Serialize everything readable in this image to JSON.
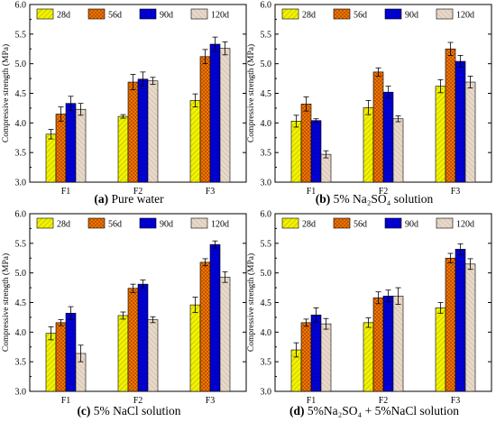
{
  "legend_labels": [
    "28d",
    "56d",
    "90d",
    "120d"
  ],
  "series_colors": [
    "#f2f200",
    "#ff8000",
    "#0000d8",
    "#e8d8c8"
  ],
  "chart_data": [
    {
      "type": "bar",
      "caption_tag": "(a)",
      "caption_text": " Pure water",
      "ylabel": "Compressive strength (MPa)",
      "categories": [
        "F1",
        "F2",
        "F3"
      ],
      "ylim": [
        3.0,
        6.0
      ],
      "yticks": [
        "3.0",
        "3.5",
        "4.0",
        "4.5",
        "5.0",
        "5.5",
        "6.0"
      ],
      "legend_position": "top",
      "series": [
        {
          "name": "28d",
          "values": [
            3.81,
            4.11,
            4.38
          ],
          "errors": [
            0.08,
            0.03,
            0.11
          ]
        },
        {
          "name": "56d",
          "values": [
            4.15,
            4.69,
            5.12
          ],
          "errors": [
            0.12,
            0.13,
            0.12
          ]
        },
        {
          "name": "90d",
          "values": [
            4.33,
            4.74,
            5.33
          ],
          "errors": [
            0.12,
            0.12,
            0.12
          ]
        },
        {
          "name": "120d",
          "values": [
            4.23,
            4.71,
            5.26
          ],
          "errors": [
            0.1,
            0.06,
            0.11
          ]
        }
      ]
    },
    {
      "type": "bar",
      "caption_tag": "(b)",
      "caption_text": " 5% Na₂SO₄ solution",
      "ylabel": "Compressive strength (MPa)",
      "categories": [
        "F1",
        "F2",
        "F3"
      ],
      "ylim": [
        3.0,
        6.0
      ],
      "yticks": [
        "3.0",
        "3.5",
        "4.0",
        "4.5",
        "5.0",
        "5.5",
        "6.0"
      ],
      "legend_position": "top",
      "series": [
        {
          "name": "28d",
          "values": [
            4.03,
            4.26,
            4.62
          ],
          "errors": [
            0.1,
            0.12,
            0.11
          ]
        },
        {
          "name": "56d",
          "values": [
            4.32,
            4.86,
            5.25
          ],
          "errors": [
            0.12,
            0.07,
            0.11
          ]
        },
        {
          "name": "90d",
          "values": [
            4.04,
            4.52,
            5.04
          ],
          "errors": [
            0.03,
            0.1,
            0.1
          ]
        },
        {
          "name": "120d",
          "values": [
            3.47,
            4.07,
            4.69
          ],
          "errors": [
            0.06,
            0.05,
            0.1
          ]
        }
      ]
    },
    {
      "type": "bar",
      "caption_tag": "(c)",
      "caption_text": " 5% NaCl solution",
      "ylabel": "Compressive strength (MPa)",
      "categories": [
        "F1",
        "F2",
        "F3"
      ],
      "ylim": [
        3.0,
        6.0
      ],
      "yticks": [
        "3.0",
        "3.5",
        "4.0",
        "4.5",
        "5.0",
        "5.5",
        "6.0"
      ],
      "legend_position": "top",
      "series": [
        {
          "name": "28d",
          "values": [
            3.98,
            4.28,
            4.46
          ],
          "errors": [
            0.11,
            0.06,
            0.13
          ]
        },
        {
          "name": "56d",
          "values": [
            4.16,
            4.74,
            5.18
          ],
          "errors": [
            0.05,
            0.07,
            0.06
          ]
        },
        {
          "name": "90d",
          "values": [
            4.32,
            4.81,
            5.48
          ],
          "errors": [
            0.11,
            0.07,
            0.06
          ]
        },
        {
          "name": "120d",
          "values": [
            3.64,
            4.21,
            4.93
          ],
          "errors": [
            0.14,
            0.05,
            0.09
          ]
        }
      ]
    },
    {
      "type": "bar",
      "caption_tag": "(d)",
      "caption_text": " 5%Na₂SO₄ + 5%NaCl solution",
      "ylabel": "Compressive strength (MPa)",
      "categories": [
        "F1",
        "F2",
        "F3"
      ],
      "ylim": [
        3.0,
        6.0
      ],
      "yticks": [
        "3.0",
        "3.5",
        "4.0",
        "4.5",
        "5.0",
        "5.5",
        "6.0"
      ],
      "legend_position": "top",
      "series": [
        {
          "name": "28d",
          "values": [
            3.7,
            4.16,
            4.41
          ],
          "errors": [
            0.12,
            0.08,
            0.09
          ]
        },
        {
          "name": "56d",
          "values": [
            4.16,
            4.58,
            5.25
          ],
          "errors": [
            0.06,
            0.1,
            0.08
          ]
        },
        {
          "name": "90d",
          "values": [
            4.29,
            4.61,
            5.4
          ],
          "errors": [
            0.12,
            0.1,
            0.09
          ]
        },
        {
          "name": "120d",
          "values": [
            4.14,
            4.61,
            5.15
          ],
          "errors": [
            0.09,
            0.14,
            0.09
          ]
        }
      ]
    }
  ]
}
